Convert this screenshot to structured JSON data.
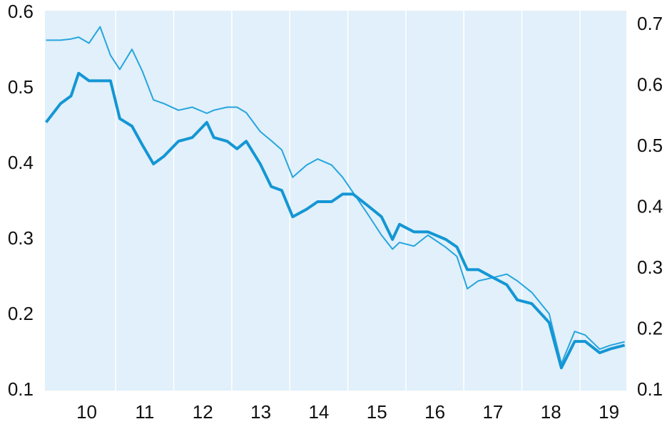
{
  "chart_data": {
    "type": "line",
    "x": [
      2009.8,
      2010.05,
      2010.23,
      2010.36,
      2010.54,
      2010.73,
      2010.91,
      2011.07,
      2011.28,
      2011.46,
      2011.65,
      2011.83,
      2012.08,
      2012.32,
      2012.57,
      2012.69,
      2012.92,
      2013.09,
      2013.25,
      2013.49,
      2013.68,
      2013.86,
      2014.05,
      2014.29,
      2014.48,
      2014.72,
      2014.91,
      2015.09,
      2015.34,
      2015.58,
      2015.77,
      2015.89,
      2016.14,
      2016.38,
      2016.69,
      2016.88,
      2017.06,
      2017.25,
      2017.49,
      2017.74,
      2017.92,
      2018.17,
      2018.47,
      2018.68,
      2018.91,
      2019.09,
      2019.34,
      2019.52,
      2019.77
    ],
    "series": [
      {
        "color": "#1496d4",
        "width": 4,
        "axis": "y",
        "values": [
          0.455,
          0.48,
          0.49,
          0.52,
          0.51,
          0.51,
          0.51,
          0.46,
          0.45,
          0.425,
          0.4,
          0.41,
          0.43,
          0.435,
          0.455,
          0.435,
          0.43,
          0.42,
          0.43,
          0.4,
          0.37,
          0.365,
          0.33,
          0.34,
          0.35,
          0.35,
          0.36,
          0.36,
          0.345,
          0.33,
          0.3,
          0.32,
          0.31,
          0.31,
          0.3,
          0.29,
          0.26,
          0.26,
          0.25,
          0.24,
          0.22,
          0.215,
          0.19,
          0.13,
          0.165,
          0.165,
          0.15,
          0.155,
          0.16
        ]
      },
      {
        "color": "#26a5de",
        "width": 2,
        "axis": "y2",
        "values": [
          0.675,
          0.675,
          0.677,
          0.68,
          0.67,
          0.697,
          0.65,
          0.627,
          0.66,
          0.624,
          0.577,
          0.571,
          0.56,
          0.565,
          0.555,
          0.56,
          0.565,
          0.565,
          0.556,
          0.525,
          0.51,
          0.495,
          0.45,
          0.47,
          0.48,
          0.47,
          0.45,
          0.425,
          0.39,
          0.355,
          0.332,
          0.343,
          0.337,
          0.355,
          0.335,
          0.32,
          0.267,
          0.28,
          0.285,
          0.291,
          0.28,
          0.261,
          0.226,
          0.144,
          0.197,
          0.191,
          0.168,
          0.174,
          0.18
        ]
      }
    ],
    "xlim": [
      2009.78,
      2019.8
    ],
    "xticks": [
      {
        "value": 2010.5,
        "label": "10"
      },
      {
        "value": 2011.5,
        "label": "11"
      },
      {
        "value": 2012.5,
        "label": "12"
      },
      {
        "value": 2013.5,
        "label": "13"
      },
      {
        "value": 2014.5,
        "label": "14"
      },
      {
        "value": 2015.5,
        "label": "15"
      },
      {
        "value": 2016.5,
        "label": "16"
      },
      {
        "value": 2017.5,
        "label": "17"
      },
      {
        "value": 2018.5,
        "label": "18"
      },
      {
        "value": 2019.5,
        "label": "19"
      }
    ],
    "x_grid_lines": [
      2011,
      2012,
      2013,
      2014,
      2015,
      2016,
      2017,
      2018,
      2019
    ],
    "ylim": [
      0.1,
      0.6
    ],
    "yticks": [
      0.1,
      0.2,
      0.3,
      0.4,
      0.5,
      0.6
    ],
    "y2lim": [
      0.1,
      0.7
    ],
    "y2ticks": [
      0.1,
      0.2,
      0.3,
      0.4,
      0.5,
      0.6,
      0.7
    ],
    "background": "#e1f0fa"
  }
}
